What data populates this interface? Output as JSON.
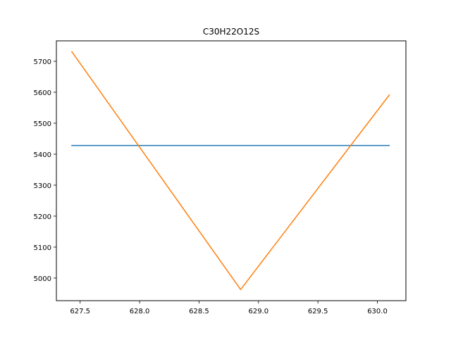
{
  "chart_data": {
    "type": "line",
    "title": "C30H22O12S",
    "xlabel": "",
    "ylabel": "",
    "xlim": [
      627.3,
      630.24
    ],
    "ylim": [
      4927,
      5766
    ],
    "xticks": [
      627.5,
      628.0,
      628.5,
      629.0,
      629.5,
      630.0
    ],
    "xtick_labels": [
      "627.5",
      "628.0",
      "628.5",
      "629.0",
      "629.5",
      "630.0"
    ],
    "yticks": [
      5000,
      5100,
      5200,
      5300,
      5400,
      5500,
      5600,
      5700
    ],
    "ytick_labels": [
      "5000",
      "5100",
      "5200",
      "5300",
      "5400",
      "5500",
      "5600",
      "5700"
    ],
    "grid": false,
    "series": [
      {
        "name": "series-1",
        "color": "#1f77b4",
        "x": [
          627.43,
          630.1
        ],
        "y": [
          5428,
          5428
        ]
      },
      {
        "name": "series-2",
        "color": "#ff7f0e",
        "x": [
          627.43,
          628.85,
          630.1
        ],
        "y": [
          5731,
          4963,
          5591
        ]
      }
    ]
  }
}
